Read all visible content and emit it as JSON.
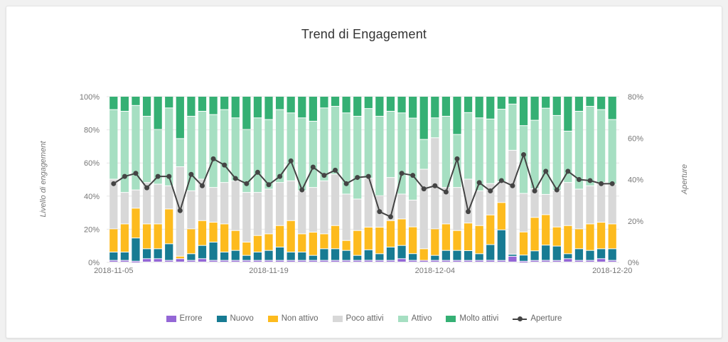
{
  "chart_data": {
    "type": "bar",
    "stacked": true,
    "normalized": true,
    "title": "Trend di Engagement",
    "ylabel": "Livello di engagement",
    "y2label": "Aperture",
    "ylim": [
      0,
      100
    ],
    "y2lim": [
      0,
      80
    ],
    "yticks": [
      "0%",
      "20%",
      "40%",
      "60%",
      "80%",
      "100%"
    ],
    "y2ticks": [
      "0%",
      "20%",
      "40%",
      "60%",
      "80%"
    ],
    "xtick_labels": [
      {
        "index": 0,
        "label": "2018-11-05"
      },
      {
        "index": 14,
        "label": "2018-11-19"
      },
      {
        "index": 29,
        "label": "2018-12-04"
      },
      {
        "index": 45,
        "label": "2018-12-20"
      }
    ],
    "start_date": "2018-11-05",
    "end_date": "2018-12-20",
    "legend_position": "bottom",
    "grid": true,
    "series": [
      {
        "name": "Errore",
        "color": "#9467d6",
        "values": [
          1,
          1,
          0.5,
          2,
          2,
          1,
          2,
          1,
          2,
          1,
          1,
          1,
          1,
          1,
          1,
          1,
          1,
          1,
          1,
          1,
          1,
          1,
          1,
          1,
          1,
          1,
          2,
          1,
          1,
          1,
          1,
          1,
          1,
          1,
          1,
          1,
          3,
          0.5,
          1,
          1,
          1,
          2,
          1,
          1,
          2,
          1
        ]
      },
      {
        "name": "Nuovo",
        "color": "#177b93",
        "values": [
          5,
          5,
          14,
          6,
          6,
          10,
          0,
          4,
          8,
          11,
          5,
          6,
          3,
          5,
          6,
          8,
          5,
          5,
          3,
          7,
          7,
          6,
          3,
          6,
          4,
          8,
          8,
          4,
          0,
          3,
          6,
          6,
          6,
          4,
          9,
          19,
          1,
          4,
          6,
          9,
          9,
          3,
          7,
          6,
          6,
          7
        ]
      },
      {
        "name": "Non attivo",
        "color": "#fdbb1e",
        "values": [
          14,
          17,
          18,
          15,
          15,
          21,
          1.5,
          15,
          15,
          12,
          17,
          12,
          8,
          10,
          10,
          13,
          19,
          11,
          14,
          9,
          14,
          6,
          15,
          13,
          16,
          16,
          16,
          16,
          7,
          16,
          16,
          12,
          17,
          17,
          17,
          17,
          0,
          15,
          21,
          18,
          12,
          17,
          12,
          16,
          16,
          15
        ]
      },
      {
        "name": "Poco attivi",
        "color": "#d8d8d8",
        "values": [
          30,
          19,
          11,
          25,
          24,
          14,
          54,
          23,
          25,
          21,
          25,
          30,
          30,
          26,
          27,
          26,
          24,
          26,
          27,
          32,
          31,
          28,
          19,
          28,
          19,
          26,
          15,
          16,
          48,
          55,
          22,
          26,
          27,
          21,
          18,
          13,
          54,
          25,
          18,
          12,
          23,
          26,
          24,
          23,
          24,
          24
        ]
      },
      {
        "name": "Attivo",
        "color": "#a6dfc2",
        "values": [
          42,
          49,
          51,
          40,
          33,
          47,
          17,
          45,
          41,
          44,
          44,
          38,
          38,
          45,
          42,
          44,
          41,
          44,
          40,
          44,
          41,
          49,
          50,
          40,
          48,
          40,
          49,
          49,
          18,
          12,
          43,
          32,
          41,
          44,
          37,
          45,
          24,
          44,
          43,
          51,
          47,
          31,
          47,
          48,
          44,
          39
        ]
      },
      {
        "name": "Molto attivi",
        "color": "#35b074",
        "values": [
          8,
          9,
          5.5,
          12,
          20,
          7,
          25.5,
          12,
          9,
          11,
          8,
          13,
          20,
          13,
          14,
          8,
          10,
          13,
          15,
          7,
          6,
          10,
          12,
          7,
          12,
          9,
          10,
          13,
          26,
          13,
          12,
          23,
          10,
          13,
          13,
          8,
          4,
          19,
          15,
          7,
          12,
          21,
          9,
          6,
          8,
          14
        ]
      },
      {
        "name": "Aperture",
        "type": "line",
        "color": "#444444",
        "axis": "right",
        "values": [
          38,
          41.5,
          43,
          36,
          41.5,
          41.5,
          25,
          42.5,
          37,
          50,
          47,
          40.5,
          38,
          43.5,
          37.5,
          41.5,
          49,
          35,
          46,
          42,
          44.5,
          38,
          41,
          41.5,
          24.5,
          22,
          43,
          42,
          35.5,
          37,
          34,
          50,
          24.5,
          38.5,
          34.5,
          39.5,
          37,
          52,
          34.5,
          44,
          35,
          44,
          40,
          39.5,
          38,
          38
        ]
      }
    ]
  },
  "legend": [
    {
      "label": "Errore",
      "color": "#9467d6"
    },
    {
      "label": "Nuovo",
      "color": "#177b93"
    },
    {
      "label": "Non attivo",
      "color": "#fdbb1e"
    },
    {
      "label": "Poco attivi",
      "color": "#d8d8d8"
    },
    {
      "label": "Attivo",
      "color": "#a6dfc2"
    },
    {
      "label": "Molto attivi",
      "color": "#35b074"
    },
    {
      "label": "Aperture",
      "color": "#444444",
      "line": true
    }
  ]
}
